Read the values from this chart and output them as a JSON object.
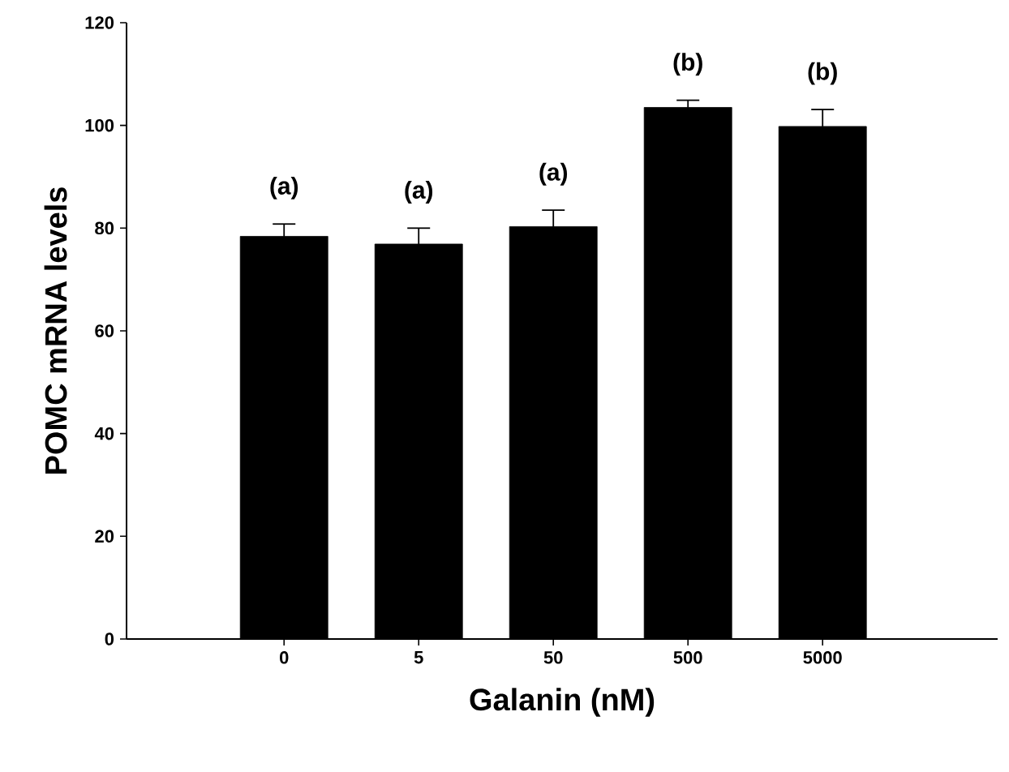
{
  "chart_data": {
    "type": "bar",
    "xlabel": "Galanin (nM)",
    "ylabel": "POMC mRNA levels",
    "categories": [
      "0",
      "5",
      "50",
      "500",
      "5000"
    ],
    "values": [
      78.4,
      76.9,
      80.3,
      103.5,
      99.8
    ],
    "errors": [
      2.4,
      3.1,
      3.2,
      1.4,
      3.3
    ],
    "color": "#000000",
    "ylim": [
      0,
      120
    ],
    "yticks": [
      0,
      20,
      40,
      60,
      80,
      100,
      120
    ],
    "grid": false,
    "annotations": [
      "(a)",
      "(a)",
      "(a)",
      "(b)",
      "(b)"
    ]
  }
}
